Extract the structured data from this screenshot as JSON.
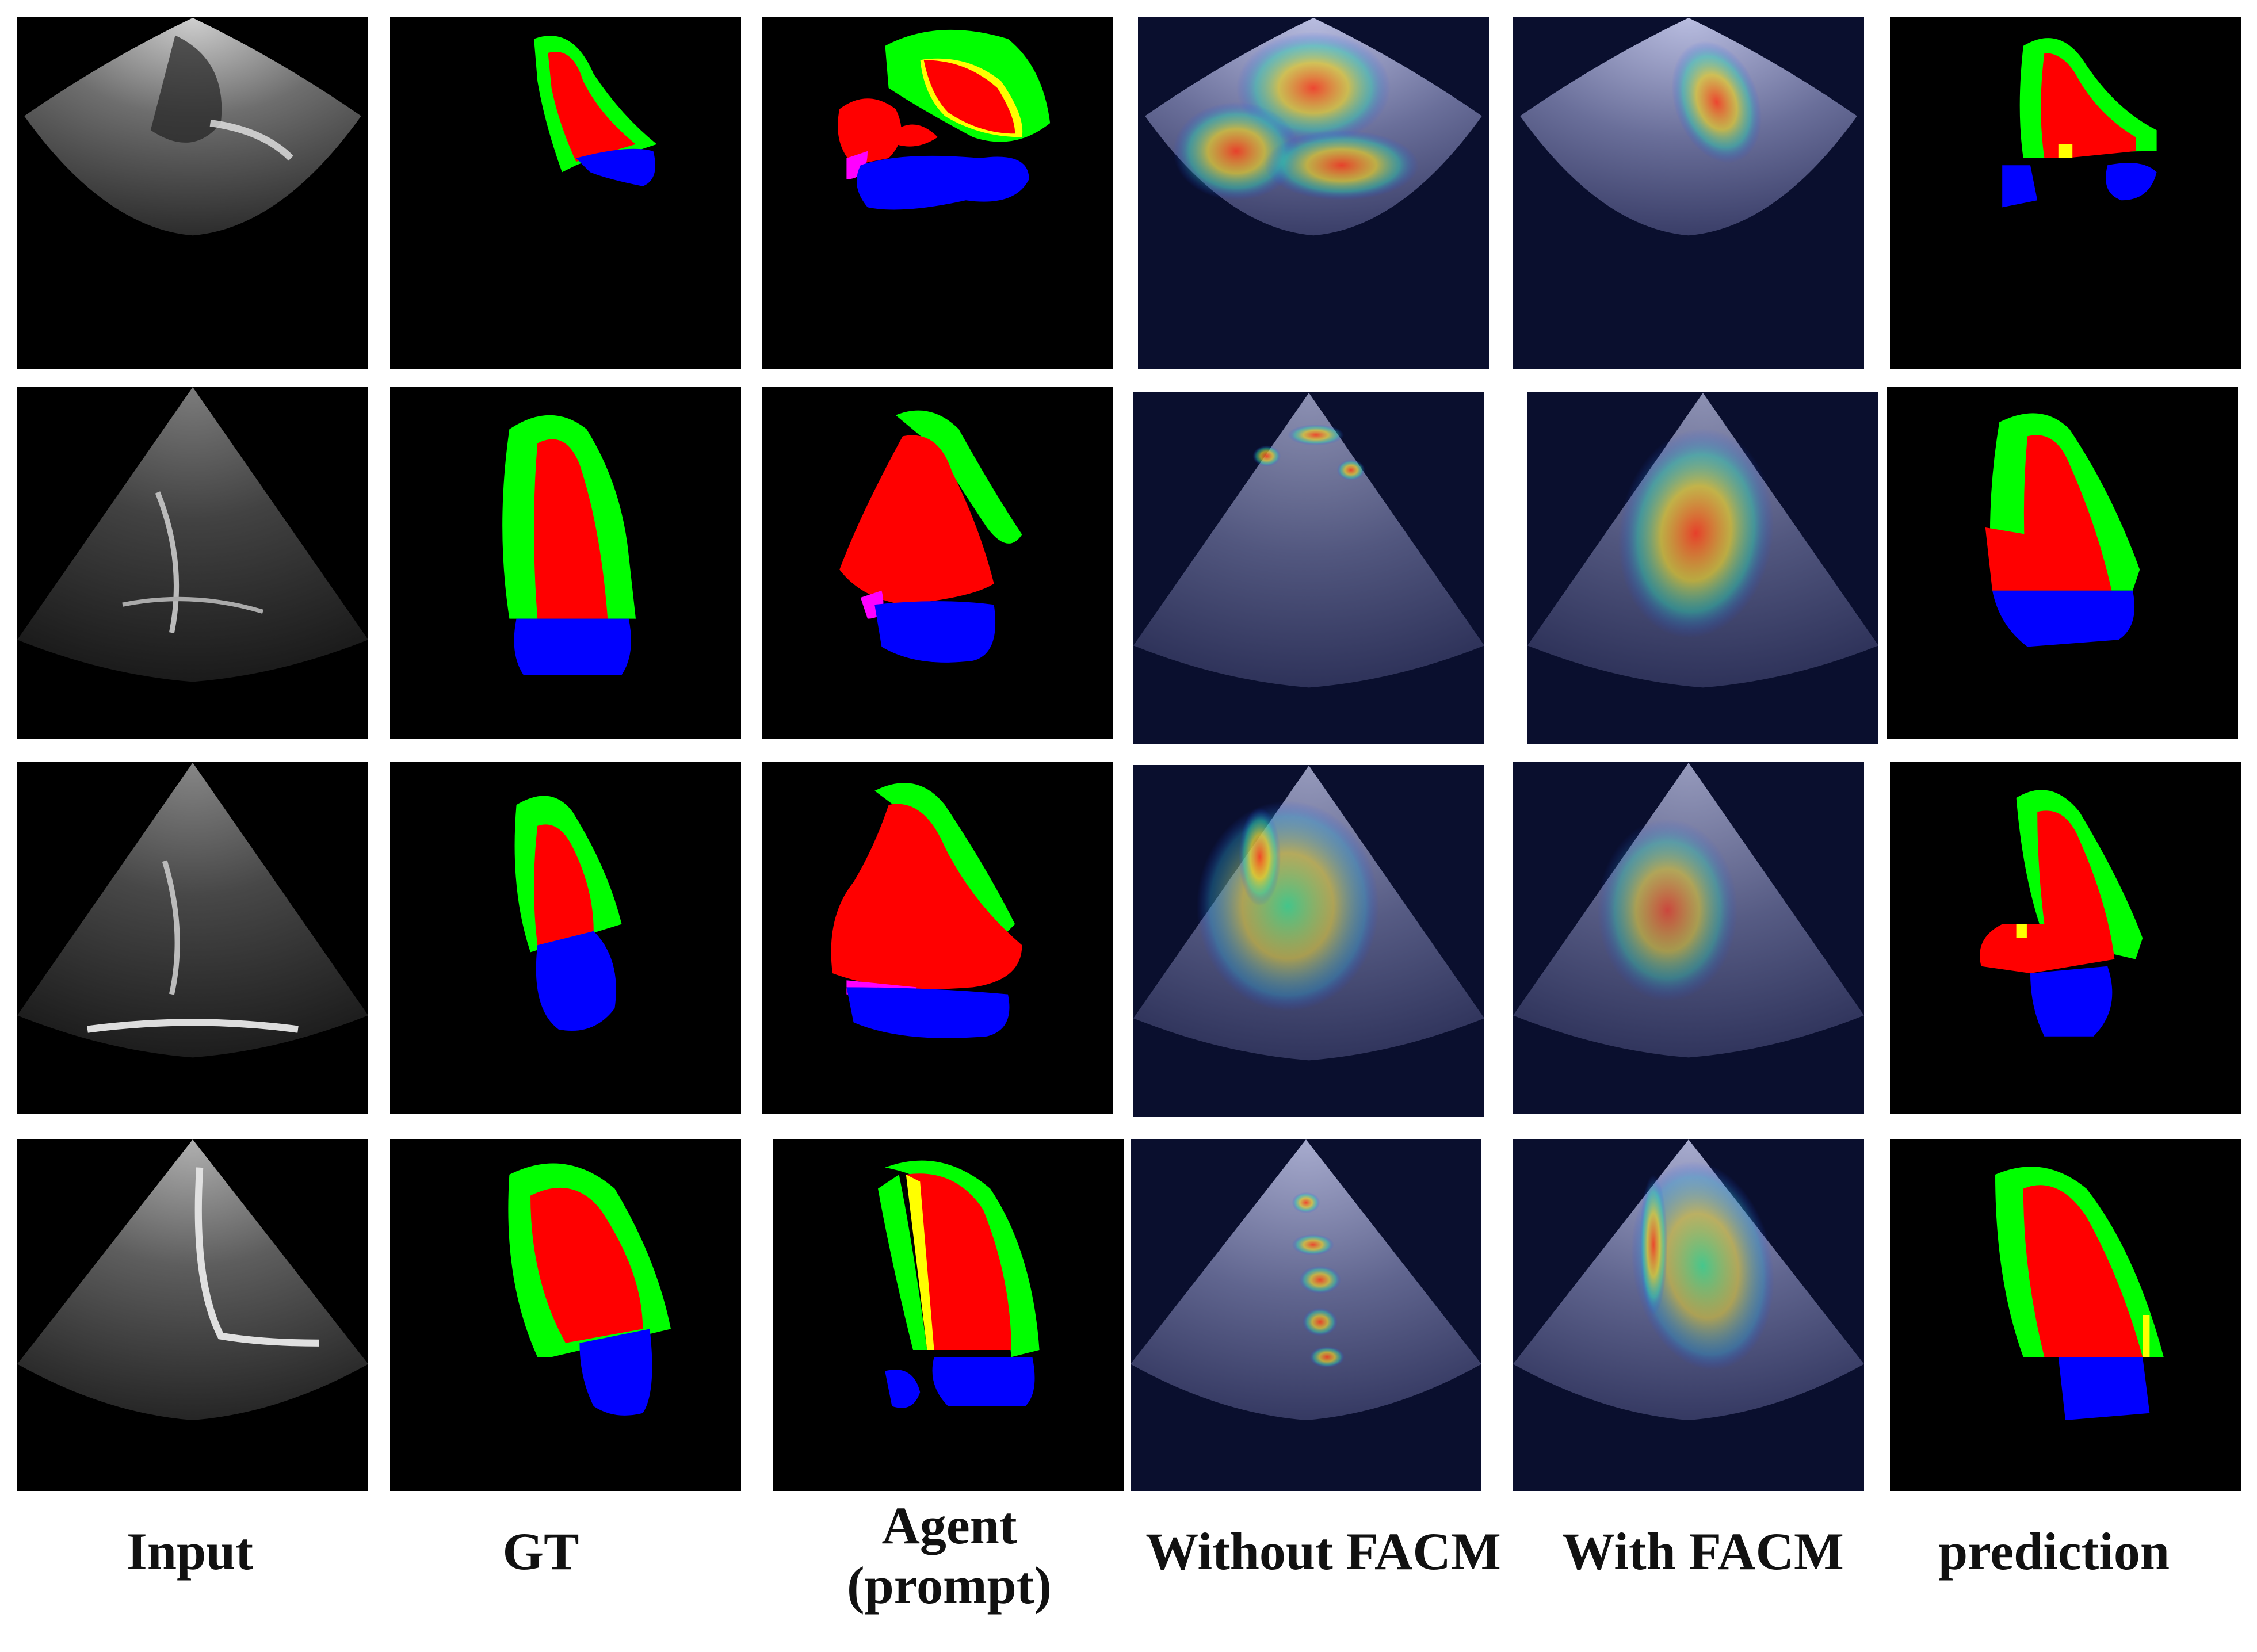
{
  "labels": {
    "input": "Input",
    "gt": "GT",
    "agent_line1": "Agent",
    "agent_line2": "(prompt)",
    "without_facm": "Without FACM",
    "with_facm": "With FACM",
    "prediction": "prediction"
  },
  "colors": {
    "myocardium": "#00ff00",
    "left_ventricle": "#ff0000",
    "left_atrium": "#0000ff",
    "overlap": "#ffff00",
    "extra": "#ff00ff",
    "heatmap_bg": "#0a0f2e"
  }
}
